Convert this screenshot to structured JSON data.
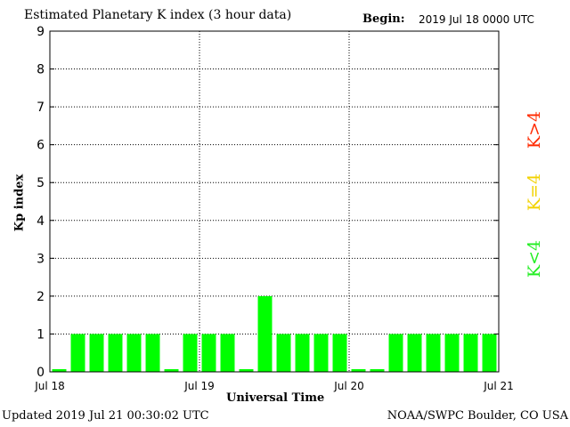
{
  "header": {
    "title": "Estimated Planetary K index (3 hour data)",
    "begin_label": "Begin:",
    "begin_value": "2019 Jul 18 0000 UTC"
  },
  "footer": {
    "updated": "Updated 2019 Jul 21 00:30:02 UTC",
    "credit": "NOAA/SWPC Boulder, CO USA"
  },
  "legend": {
    "low": {
      "label": "K<4",
      "color": "#22ee22"
    },
    "mid": {
      "label": "K=4",
      "color": "#f2d200"
    },
    "high": {
      "label": "K>4",
      "color": "#ff2a00"
    }
  },
  "colors": {
    "bar": "#00ff00",
    "axis": "#000000",
    "grid": "#000000"
  },
  "chart_data": {
    "type": "bar",
    "title": "Estimated Planetary K index (3 hour data)",
    "xlabel": "Universal Time",
    "ylabel": "Kp index",
    "ylim": [
      0,
      9
    ],
    "yticks": [
      "0",
      "1",
      "2",
      "3",
      "4",
      "5",
      "6",
      "7",
      "8",
      "9"
    ],
    "xticks": [
      "Jul 18",
      "Jul 19",
      "Jul 20",
      "Jul 21"
    ],
    "grid": "dotted",
    "categories": [
      "Jul 18 00",
      "Jul 18 03",
      "Jul 18 06",
      "Jul 18 09",
      "Jul 18 12",
      "Jul 18 15",
      "Jul 18 18",
      "Jul 18 21",
      "Jul 19 00",
      "Jul 19 03",
      "Jul 19 06",
      "Jul 19 09",
      "Jul 19 12",
      "Jul 19 15",
      "Jul 19 18",
      "Jul 19 21",
      "Jul 20 00",
      "Jul 20 03",
      "Jul 20 06",
      "Jul 20 09",
      "Jul 20 12",
      "Jul 20 15",
      "Jul 20 18",
      "Jul 20 21"
    ],
    "values": [
      0,
      1,
      1,
      1,
      1,
      1,
      0,
      1,
      1,
      1,
      0,
      2,
      1,
      1,
      1,
      1,
      0,
      0,
      1,
      1,
      1,
      1,
      1,
      1
    ]
  }
}
